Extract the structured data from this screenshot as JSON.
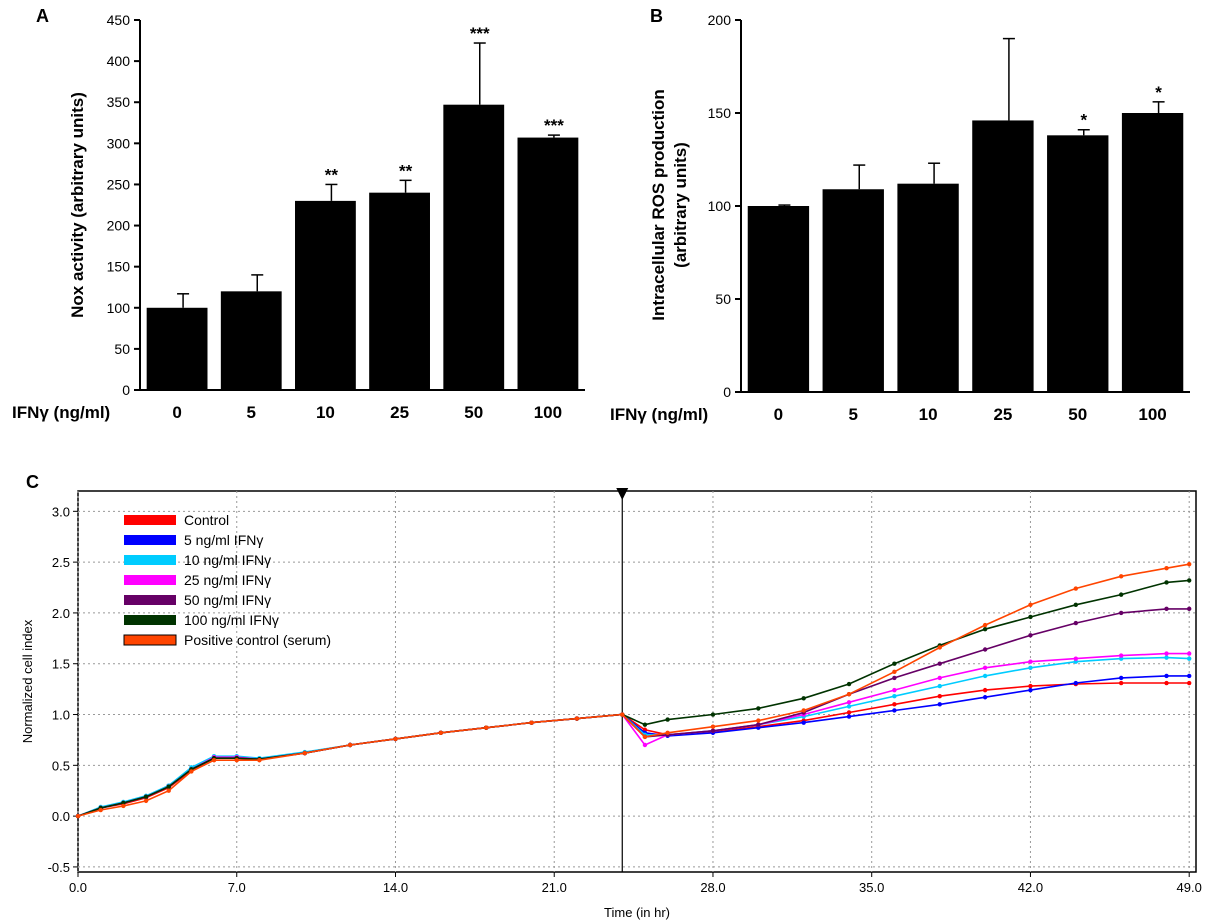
{
  "chart_data": [
    {
      "panel": "A",
      "type": "bar",
      "ylabel": "Nox activity (arbitrary units)",
      "xlabel": "IFNγ (ng/ml)",
      "categories": [
        "0",
        "5",
        "10",
        "25",
        "50",
        "100"
      ],
      "values": [
        100,
        120,
        230,
        240,
        347,
        307
      ],
      "errors": [
        17,
        20,
        20,
        15,
        75,
        3
      ],
      "significance": [
        "",
        "",
        "**",
        "**",
        "***",
        "***"
      ],
      "ylim": [
        0,
        450
      ],
      "yticks": [
        0,
        50,
        100,
        150,
        200,
        250,
        300,
        350,
        400,
        450
      ],
      "bar_color": "#000000"
    },
    {
      "panel": "B",
      "type": "bar",
      "ylabel": "Intracellular ROS production (arbitrary units)",
      "ylabel_line1": "Intracellular ROS production",
      "ylabel_line2": "(arbitrary units)",
      "xlabel": "IFNγ (ng/ml)",
      "categories": [
        "0",
        "5",
        "10",
        "25",
        "50",
        "100"
      ],
      "values": [
        100,
        109,
        112,
        146,
        138,
        150
      ],
      "errors": [
        0.5,
        13,
        11,
        44,
        3,
        6
      ],
      "significance": [
        "",
        "",
        "",
        "",
        "*",
        "*"
      ],
      "ylim": [
        0,
        200
      ],
      "yticks": [
        0,
        50,
        100,
        150,
        200
      ],
      "bar_color": "#000000"
    },
    {
      "panel": "C",
      "type": "line",
      "xlabel": "Time (in hr)",
      "ylabel": "Normalized cell index",
      "xlim": [
        0,
        49.3
      ],
      "ylim": [
        -0.55,
        3.2
      ],
      "xticks": [
        "0.0",
        "7.0",
        "14.0",
        "21.0",
        "28.0",
        "35.0",
        "42.0",
        "49.0"
      ],
      "yticks": [
        "-0.5",
        "0.0",
        "0.5",
        "1.0",
        "1.5",
        "2.0",
        "2.5",
        "3.0"
      ],
      "grid": true,
      "legend_position": "top-left",
      "treatment_time": 24,
      "series": [
        {
          "name": "Control",
          "color": "#ff0000",
          "points": [
            [
              0,
              0
            ],
            [
              1,
              0.08
            ],
            [
              2,
              0.12
            ],
            [
              3,
              0.18
            ],
            [
              4,
              0.28
            ],
            [
              5,
              0.45
            ],
            [
              6,
              0.57
            ],
            [
              7,
              0.57
            ],
            [
              8,
              0.56
            ],
            [
              10,
              0.62
            ],
            [
              12,
              0.7
            ],
            [
              14,
              0.76
            ],
            [
              16,
              0.82
            ],
            [
              18,
              0.87
            ],
            [
              20,
              0.92
            ],
            [
              22,
              0.96
            ],
            [
              24,
              1.0
            ],
            [
              25,
              0.85
            ],
            [
              26,
              0.8
            ],
            [
              28,
              0.83
            ],
            [
              30,
              0.88
            ],
            [
              32,
              0.94
            ],
            [
              34,
              1.02
            ],
            [
              36,
              1.1
            ],
            [
              38,
              1.18
            ],
            [
              40,
              1.24
            ],
            [
              42,
              1.28
            ],
            [
              44,
              1.3
            ],
            [
              46,
              1.31
            ],
            [
              48,
              1.31
            ],
            [
              49,
              1.31
            ]
          ]
        },
        {
          "name": "5 ng/ml IFNγ",
          "color": "#0000ff",
          "points": [
            [
              0,
              0
            ],
            [
              1,
              0.08
            ],
            [
              2,
              0.13
            ],
            [
              3,
              0.19
            ],
            [
              4,
              0.3
            ],
            [
              5,
              0.47
            ],
            [
              6,
              0.58
            ],
            [
              7,
              0.58
            ],
            [
              8,
              0.56
            ],
            [
              10,
              0.62
            ],
            [
              12,
              0.7
            ],
            [
              14,
              0.76
            ],
            [
              16,
              0.82
            ],
            [
              18,
              0.87
            ],
            [
              20,
              0.92
            ],
            [
              22,
              0.96
            ],
            [
              24,
              1.0
            ],
            [
              25,
              0.82
            ],
            [
              26,
              0.79
            ],
            [
              28,
              0.82
            ],
            [
              30,
              0.87
            ],
            [
              32,
              0.92
            ],
            [
              34,
              0.98
            ],
            [
              36,
              1.04
            ],
            [
              38,
              1.1
            ],
            [
              40,
              1.17
            ],
            [
              42,
              1.24
            ],
            [
              44,
              1.31
            ],
            [
              46,
              1.36
            ],
            [
              48,
              1.38
            ],
            [
              49,
              1.38
            ]
          ]
        },
        {
          "name": "10 ng/ml IFNγ",
          "color": "#00ccff",
          "points": [
            [
              0,
              0
            ],
            [
              1,
              0.09
            ],
            [
              2,
              0.14
            ],
            [
              3,
              0.2
            ],
            [
              4,
              0.3
            ],
            [
              5,
              0.48
            ],
            [
              6,
              0.59
            ],
            [
              7,
              0.59
            ],
            [
              8,
              0.57
            ],
            [
              10,
              0.63
            ],
            [
              12,
              0.7
            ],
            [
              14,
              0.76
            ],
            [
              16,
              0.82
            ],
            [
              18,
              0.87
            ],
            [
              20,
              0.92
            ],
            [
              22,
              0.96
            ],
            [
              24,
              1.0
            ],
            [
              25,
              0.8
            ],
            [
              26,
              0.8
            ],
            [
              28,
              0.84
            ],
            [
              30,
              0.9
            ],
            [
              32,
              0.98
            ],
            [
              34,
              1.08
            ],
            [
              36,
              1.18
            ],
            [
              38,
              1.28
            ],
            [
              40,
              1.38
            ],
            [
              42,
              1.46
            ],
            [
              44,
              1.52
            ],
            [
              46,
              1.55
            ],
            [
              48,
              1.56
            ],
            [
              49,
              1.55
            ]
          ]
        },
        {
          "name": "25 ng/ml IFNγ",
          "color": "#ff00ff",
          "points": [
            [
              0,
              0
            ],
            [
              1,
              0.08
            ],
            [
              2,
              0.13
            ],
            [
              3,
              0.19
            ],
            [
              4,
              0.29
            ],
            [
              5,
              0.46
            ],
            [
              6,
              0.58
            ],
            [
              7,
              0.58
            ],
            [
              8,
              0.56
            ],
            [
              10,
              0.62
            ],
            [
              12,
              0.7
            ],
            [
              14,
              0.76
            ],
            [
              16,
              0.82
            ],
            [
              18,
              0.87
            ],
            [
              20,
              0.92
            ],
            [
              22,
              0.96
            ],
            [
              24,
              1.0
            ],
            [
              25,
              0.7
            ],
            [
              26,
              0.8
            ],
            [
              28,
              0.84
            ],
            [
              30,
              0.9
            ],
            [
              32,
              1.0
            ],
            [
              34,
              1.12
            ],
            [
              36,
              1.24
            ],
            [
              38,
              1.36
            ],
            [
              40,
              1.46
            ],
            [
              42,
              1.52
            ],
            [
              44,
              1.55
            ],
            [
              46,
              1.58
            ],
            [
              48,
              1.6
            ],
            [
              49,
              1.6
            ]
          ]
        },
        {
          "name": "50 ng/ml IFNγ",
          "color": "#660066",
          "points": [
            [
              0,
              0
            ],
            [
              1,
              0.08
            ],
            [
              2,
              0.13
            ],
            [
              3,
              0.19
            ],
            [
              4,
              0.29
            ],
            [
              5,
              0.46
            ],
            [
              6,
              0.57
            ],
            [
              7,
              0.57
            ],
            [
              8,
              0.56
            ],
            [
              10,
              0.62
            ],
            [
              12,
              0.7
            ],
            [
              14,
              0.76
            ],
            [
              16,
              0.82
            ],
            [
              18,
              0.87
            ],
            [
              20,
              0.92
            ],
            [
              22,
              0.96
            ],
            [
              24,
              1.0
            ],
            [
              25,
              0.78
            ],
            [
              26,
              0.8
            ],
            [
              28,
              0.84
            ],
            [
              30,
              0.9
            ],
            [
              32,
              1.02
            ],
            [
              34,
              1.2
            ],
            [
              36,
              1.36
            ],
            [
              38,
              1.5
            ],
            [
              40,
              1.64
            ],
            [
              42,
              1.78
            ],
            [
              44,
              1.9
            ],
            [
              46,
              2.0
            ],
            [
              48,
              2.04
            ],
            [
              49,
              2.04
            ]
          ]
        },
        {
          "name": "100 ng/ml IFNγ",
          "color": "#003300",
          "points": [
            [
              0,
              0
            ],
            [
              1,
              0.08
            ],
            [
              2,
              0.13
            ],
            [
              3,
              0.19
            ],
            [
              4,
              0.29
            ],
            [
              5,
              0.46
            ],
            [
              6,
              0.57
            ],
            [
              7,
              0.57
            ],
            [
              8,
              0.56
            ],
            [
              10,
              0.62
            ],
            [
              12,
              0.7
            ],
            [
              14,
              0.76
            ],
            [
              16,
              0.82
            ],
            [
              18,
              0.87
            ],
            [
              20,
              0.92
            ],
            [
              22,
              0.96
            ],
            [
              24,
              1.0
            ],
            [
              25,
              0.9
            ],
            [
              26,
              0.95
            ],
            [
              28,
              1.0
            ],
            [
              30,
              1.06
            ],
            [
              32,
              1.16
            ],
            [
              34,
              1.3
            ],
            [
              36,
              1.5
            ],
            [
              38,
              1.68
            ],
            [
              40,
              1.84
            ],
            [
              42,
              1.96
            ],
            [
              44,
              2.08
            ],
            [
              46,
              2.18
            ],
            [
              48,
              2.3
            ],
            [
              49,
              2.32
            ]
          ]
        },
        {
          "name": "Positive control (serum)",
          "color": "#ff4500",
          "points": [
            [
              0,
              0
            ],
            [
              1,
              0.06
            ],
            [
              2,
              0.1
            ],
            [
              3,
              0.15
            ],
            [
              4,
              0.25
            ],
            [
              5,
              0.44
            ],
            [
              6,
              0.55
            ],
            [
              7,
              0.55
            ],
            [
              8,
              0.55
            ],
            [
              10,
              0.62
            ],
            [
              12,
              0.7
            ],
            [
              14,
              0.76
            ],
            [
              16,
              0.82
            ],
            [
              18,
              0.87
            ],
            [
              20,
              0.92
            ],
            [
              22,
              0.96
            ],
            [
              24,
              1.0
            ],
            [
              25,
              0.78
            ],
            [
              26,
              0.82
            ],
            [
              28,
              0.88
            ],
            [
              30,
              0.94
            ],
            [
              32,
              1.04
            ],
            [
              34,
              1.2
            ],
            [
              36,
              1.42
            ],
            [
              38,
              1.66
            ],
            [
              40,
              1.88
            ],
            [
              42,
              2.08
            ],
            [
              44,
              2.24
            ],
            [
              46,
              2.36
            ],
            [
              48,
              2.44
            ],
            [
              49,
              2.48
            ]
          ]
        }
      ]
    }
  ],
  "labels": {
    "panel_a": "A",
    "panel_b": "B",
    "panel_c": "C"
  }
}
